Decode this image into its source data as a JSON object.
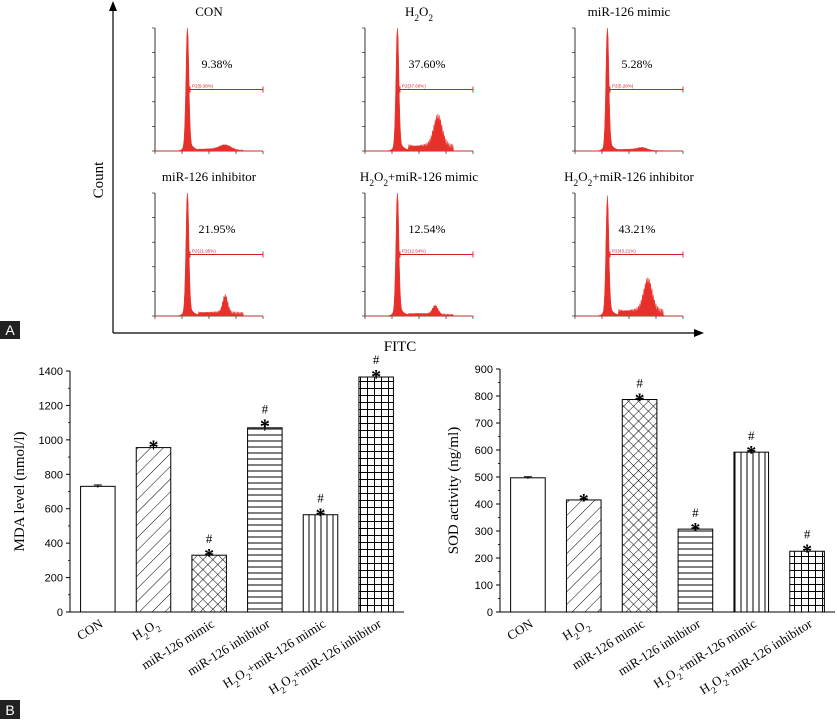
{
  "panel_letters": {
    "a": "A",
    "b": "B"
  },
  "colors": {
    "histogram_fill": "#e8302a",
    "gate": "#cc2222",
    "axis": "#000000"
  },
  "chart_data": [
    {
      "type": "histogram",
      "xlabel": "FITC",
      "ylabel": "Count",
      "panels": [
        {
          "title": "CON",
          "percent": "9.38%",
          "gate_label": "P2(9.38%)"
        },
        {
          "title": "H2O2",
          "percent": "37.60%",
          "gate_label": "P2(37.60%)"
        },
        {
          "title": "miR-126 mimic",
          "percent": "5.28%",
          "gate_label": "P2(5.28%)"
        },
        {
          "title": "miR-126 inhibitor",
          "percent": "21.95%",
          "gate_label": "P2(21.95%)"
        },
        {
          "title": "H2O2+miR-126 mimic",
          "percent": "12.54%",
          "gate_label": "P2(12.54%)"
        },
        {
          "title": "H2O2+miR-126 inhibitor",
          "percent": "43.21%",
          "gate_label": "P2(43.21%)"
        }
      ]
    },
    {
      "type": "bar",
      "ylabel": "MDA level (nmol/l)",
      "ylim": [
        0,
        1400
      ],
      "yticks": [
        0,
        200,
        400,
        600,
        800,
        1000,
        1200,
        1400
      ],
      "categories": [
        "CON",
        "H2O2",
        "miR-126 mimic",
        "miR-126 inhibitor",
        "H2O2+miR-126 mimic",
        "H2O2+miR-126 inhibitor"
      ],
      "values": [
        730,
        955,
        330,
        1070,
        565,
        1365
      ],
      "errors": [
        8,
        12,
        6,
        18,
        8,
        12
      ],
      "patterns": [
        "none",
        "diag",
        "cross",
        "hline",
        "vline",
        "grid"
      ],
      "marks": [
        {
          "star": "",
          "hash": ""
        },
        {
          "star": "*",
          "hash": ""
        },
        {
          "star": "*",
          "hash": "#"
        },
        {
          "star": "*",
          "hash": "#"
        },
        {
          "star": "*",
          "hash": "#"
        },
        {
          "star": "*",
          "hash": "#"
        }
      ]
    },
    {
      "type": "bar",
      "ylabel": "SOD activity (ng/ml)",
      "ylim": [
        0,
        900
      ],
      "yticks": [
        0,
        100,
        200,
        300,
        400,
        500,
        600,
        700,
        800,
        900
      ],
      "categories": [
        "CON",
        "H2O2",
        "miR-126 mimic",
        "miR-126 inhibitor",
        "H2O2+miR-126 mimic",
        "H2O2+miR-126 inhibitor"
      ],
      "values": [
        497,
        415,
        787,
        307,
        592,
        225
      ],
      "errors": [
        4,
        4,
        4,
        4,
        5,
        6
      ],
      "patterns": [
        "none",
        "diag",
        "cross",
        "hline",
        "vline",
        "grid"
      ],
      "marks": [
        {
          "star": "",
          "hash": ""
        },
        {
          "star": "*",
          "hash": ""
        },
        {
          "star": "*",
          "hash": "#"
        },
        {
          "star": "*",
          "hash": "#"
        },
        {
          "star": "*",
          "hash": "#"
        },
        {
          "star": "*",
          "hash": "#"
        }
      ]
    }
  ]
}
